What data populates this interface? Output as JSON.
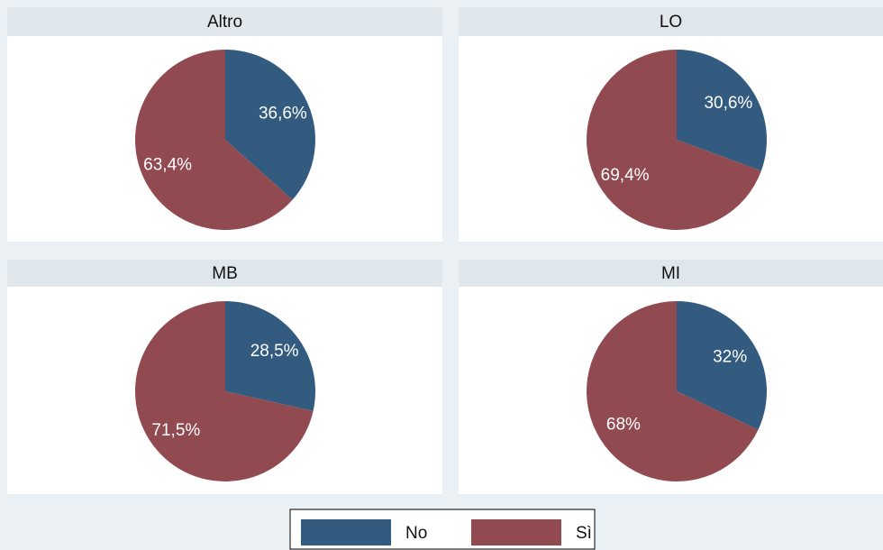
{
  "chart_data": [
    {
      "type": "pie",
      "title": "Altro",
      "values": [
        36.6,
        63.4
      ],
      "value_labels": [
        "36,6%",
        "63,4%"
      ]
    },
    {
      "type": "pie",
      "title": "LO",
      "values": [
        30.6,
        69.4
      ],
      "value_labels": [
        "30,6%",
        "69,4%"
      ]
    },
    {
      "type": "pie",
      "title": "MB",
      "values": [
        28.5,
        71.5
      ],
      "value_labels": [
        "28,5%",
        "71,5%"
      ]
    },
    {
      "type": "pie",
      "title": "MI",
      "values": [
        32,
        68
      ],
      "value_labels": [
        "32%",
        "68%"
      ]
    }
  ],
  "legend": [
    {
      "name": "No",
      "color": "#335b80"
    },
    {
      "name": "Sì",
      "color": "#924a51"
    }
  ]
}
